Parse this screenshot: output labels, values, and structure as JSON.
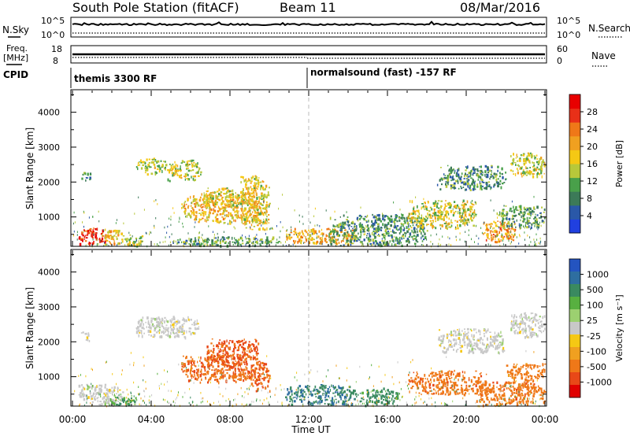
{
  "header": {
    "title": "South Pole Station (fitACF)",
    "beam": "Beam 11",
    "date": "08/Mar/2016"
  },
  "strips": {
    "nsky_label": "N.Sky",
    "nsky_ticks": [
      "10^5",
      "10^0"
    ],
    "nsearch_label": "N.Search",
    "nsearch_ticks": [
      "10^5",
      "10^0"
    ],
    "freq_label": "Freq.",
    "freq_unit": "[MHz]",
    "freq_ticks": [
      "18",
      "8"
    ],
    "nave_label": "Nave",
    "nave_ticks": [
      "60",
      "0"
    ],
    "cpid_label": "CPID",
    "cpid_left": "themis 3300 RF",
    "cpid_right": "normalsound (fast) -157 RF"
  },
  "panels": {
    "ylabel": "Slant Range [km]",
    "yticks": [
      "4000",
      "3000",
      "2000",
      "1000"
    ],
    "xticks": [
      "00:00",
      "04:00",
      "08:00",
      "12:00",
      "16:00",
      "20:00",
      "00:00"
    ],
    "xlabel": "Time UT"
  },
  "power_bar": {
    "label": "Power [dB]",
    "ticks": [
      "28",
      "24",
      "20",
      "16",
      "12",
      "8",
      "4"
    ],
    "colors": [
      "#2040e0",
      "#2a58a8",
      "#3c7a58",
      "#49a04a",
      "#b8c83a",
      "#f5c814",
      "#f0a020",
      "#ef7818",
      "#e83018",
      "#e80000"
    ]
  },
  "velocity_bar": {
    "label": "Velocity [m s⁻¹]",
    "ticks": [
      "1000",
      "500",
      "100",
      "25",
      "-25",
      "-100",
      "-500",
      "-1000"
    ],
    "colors": [
      "#2454c0",
      "#2e6ea0",
      "#3a8a60",
      "#58b040",
      "#9cd070",
      "#c8c8c8",
      "#f5c814",
      "#f0a020",
      "#ef7818",
      "#e84818",
      "#e00000"
    ]
  },
  "chart_data": [
    {
      "type": "heatmap",
      "title": "Power [dB]",
      "xlabel": "Time UT",
      "ylabel": "Slant Range [km]",
      "xlim": [
        0,
        24
      ],
      "ylim": [
        180,
        4600
      ],
      "clim": [
        0,
        30
      ],
      "blobs": [
        {
          "t": [
            0.3,
            1.8
          ],
          "r": [
            200,
            700
          ],
          "val": 27
        },
        {
          "t": [
            1.6,
            2.6
          ],
          "r": [
            200,
            700
          ],
          "val": 17
        },
        {
          "t": [
            0.4,
            0.9
          ],
          "r": [
            2050,
            2300
          ],
          "val": 8
        },
        {
          "t": [
            2.6,
            3.6
          ],
          "r": [
            200,
            500
          ],
          "val": 14
        },
        {
          "t": [
            3.2,
            4.8
          ],
          "r": [
            2250,
            2700
          ],
          "val": 14
        },
        {
          "t": [
            4.8,
            6.5
          ],
          "r": [
            2050,
            2650
          ],
          "val": 14
        },
        {
          "t": [
            5.5,
            9.5
          ],
          "r": [
            850,
            1650
          ],
          "val": 18
        },
        {
          "t": [
            6.5,
            8.8
          ],
          "r": [
            1350,
            1850
          ],
          "val": 16
        },
        {
          "t": [
            8.5,
            10.0
          ],
          "r": [
            600,
            2200
          ],
          "val": 16
        },
        {
          "t": [
            5.0,
            10.5
          ],
          "r": [
            200,
            450
          ],
          "val": 10
        },
        {
          "t": [
            10.8,
            14.5
          ],
          "r": [
            250,
            700
          ],
          "val": 19
        },
        {
          "t": [
            13.0,
            18.0
          ],
          "r": [
            200,
            1100
          ],
          "val": 9
        },
        {
          "t": [
            17.0,
            20.5
          ],
          "r": [
            700,
            1500
          ],
          "val": 15
        },
        {
          "t": [
            18.5,
            22.0
          ],
          "r": [
            1800,
            2500
          ],
          "val": 9
        },
        {
          "t": [
            20.8,
            22.5
          ],
          "r": [
            300,
            900
          ],
          "val": 20
        },
        {
          "t": [
            21.5,
            24.0
          ],
          "r": [
            700,
            1350
          ],
          "val": 10
        },
        {
          "t": [
            22.2,
            24.0
          ],
          "r": [
            2150,
            2850
          ],
          "val": 15
        }
      ]
    },
    {
      "type": "heatmap",
      "title": "Velocity [m s⁻¹]",
      "xlabel": "Time UT",
      "ylabel": "Slant Range [km]",
      "xlim": [
        0,
        24
      ],
      "ylim": [
        180,
        4600
      ],
      "clim": [
        -1000,
        1000
      ],
      "blobs": [
        {
          "t": [
            0.3,
            2.6
          ],
          "r": [
            200,
            800
          ],
          "val": 0
        },
        {
          "t": [
            1.8,
            3.2
          ],
          "r": [
            200,
            450
          ],
          "val": 90
        },
        {
          "t": [
            0.4,
            0.9
          ],
          "r": [
            2050,
            2300
          ],
          "val": 0
        },
        {
          "t": [
            3.2,
            6.5
          ],
          "r": [
            2150,
            2750
          ],
          "val": 0
        },
        {
          "t": [
            5.5,
            9.5
          ],
          "r": [
            850,
            1650
          ],
          "val": -450
        },
        {
          "t": [
            6.8,
            9.5
          ],
          "r": [
            1300,
            2100
          ],
          "val": -550
        },
        {
          "t": [
            9.0,
            10.0
          ],
          "r": [
            600,
            1500
          ],
          "val": -500
        },
        {
          "t": [
            10.8,
            14.5
          ],
          "r": [
            200,
            800
          ],
          "val": 250
        },
        {
          "t": [
            14.5,
            16.5
          ],
          "r": [
            200,
            700
          ],
          "val": 150
        },
        {
          "t": [
            17.0,
            21.0
          ],
          "r": [
            500,
            1200
          ],
          "val": -400
        },
        {
          "t": [
            20.5,
            24.0
          ],
          "r": [
            200,
            900
          ],
          "val": -400
        },
        {
          "t": [
            22.0,
            24.0
          ],
          "r": [
            900,
            1400
          ],
          "val": -350
        },
        {
          "t": [
            18.5,
            22.0
          ],
          "r": [
            1700,
            2400
          ],
          "val": 0
        },
        {
          "t": [
            22.2,
            24.0
          ],
          "r": [
            2150,
            2850
          ],
          "val": 0
        }
      ]
    }
  ]
}
